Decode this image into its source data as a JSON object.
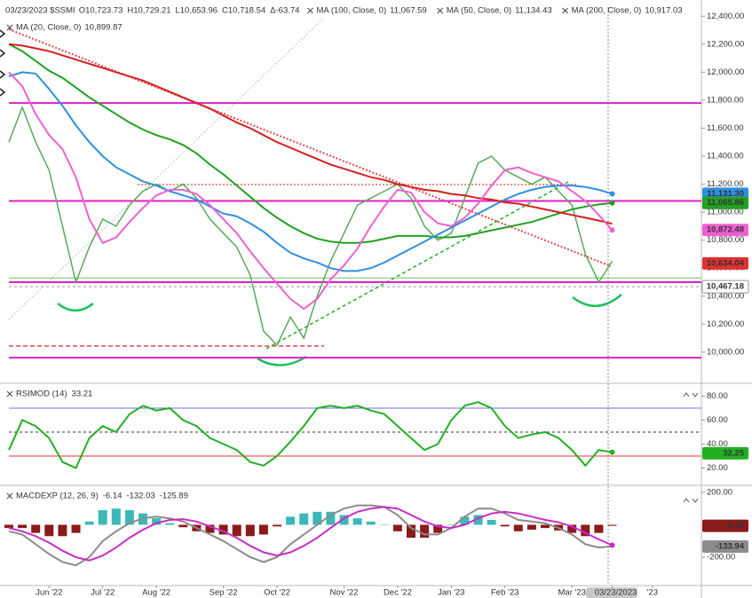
{
  "chart_data": [
    {
      "type": "line",
      "title": "03/23/2023 $SSMI",
      "quote": [
        "O10,723.73",
        "H10,729.21",
        "L10,653.96",
        "C10,718.54",
        "Δ-63.74"
      ],
      "quote_color": "#d42020",
      "ylim": [
        9790,
        12465
      ],
      "yticks": [
        {
          "value": 10000,
          "label": "10,000.00"
        },
        {
          "value": 10200,
          "label": "10,200.00"
        },
        {
          "value": 10400,
          "label": "10,400.00"
        },
        {
          "value": 10600,
          "label": "10,600.00"
        },
        {
          "value": 10800,
          "label": "10,800.00"
        },
        {
          "value": 11000,
          "label": "11,000.00"
        },
        {
          "value": 11200,
          "label": "11,200.00"
        },
        {
          "value": 11400,
          "label": "11,400.00"
        },
        {
          "value": 11600,
          "label": "11,600.00"
        },
        {
          "value": 11800,
          "label": "11,800.00"
        },
        {
          "value": 12000,
          "label": "12,000.00"
        },
        {
          "value": 12200,
          "label": "12,200.00"
        },
        {
          "value": 12400,
          "label": "12,400.00"
        }
      ],
      "grid": false,
      "levels": [
        {
          "value": 11780,
          "color": "#e020c0",
          "width": 2
        },
        {
          "value": 11080,
          "color": "#e020c0",
          "width": 2
        },
        {
          "value": 10500,
          "color": "#e020c0",
          "width": 2
        },
        {
          "value": 9960,
          "color": "#e020c0",
          "width": 2
        },
        {
          "value": 10530,
          "color": "#6cc06c",
          "width": 1
        },
        {
          "value": 10467.18,
          "color": "#999999",
          "width": 1,
          "dash": true
        }
      ],
      "series": [
        {
          "color": "#5aa85a",
          "values": [
            11500,
            11750,
            11500,
            11300,
            10900,
            10500,
            10750,
            10950,
            10900,
            11050,
            11150,
            11200,
            11150,
            11200,
            11100,
            10950,
            10850,
            10750,
            10550,
            10150,
            10050,
            10250,
            10100,
            10400,
            10650,
            10850,
            11050,
            11100,
            11150,
            11200,
            11100,
            10900,
            10800,
            10850,
            11100,
            11350,
            11400,
            11300,
            11250,
            11200,
            11250,
            11150,
            11050,
            10700,
            10500,
            10650,
            null,
            null,
            null,
            null,
            null,
            null
          ]
        },
        {
          "name": "MA (100, Close, 0)",
          "legend_value": "11,067.59",
          "color": "#22a022",
          "marker_last": true,
          "values": [
            12200,
            12150,
            12080,
            12010,
            11960,
            11890,
            11820,
            11760,
            11700,
            11640,
            11590,
            11550,
            11520,
            11480,
            11420,
            11340,
            11270,
            11190,
            11110,
            11030,
            10960,
            10900,
            10850,
            10810,
            10790,
            10780,
            10780,
            10790,
            10810,
            10830,
            10830,
            10830,
            10820,
            10820,
            10830,
            10850,
            10870,
            10890,
            10910,
            10930,
            10960,
            10990,
            11020,
            11040,
            11055,
            11066,
            null,
            null,
            null,
            null,
            null,
            null
          ]
        },
        {
          "name": "MA (50, Close, 0)",
          "legend_value": "11,134.43",
          "color": "#2f8fe0",
          "marker_last": true,
          "values": [
            11970,
            12000,
            11990,
            11880,
            11760,
            11620,
            11500,
            11400,
            11320,
            11270,
            11220,
            11190,
            11150,
            11120,
            11090,
            11040,
            10990,
            10970,
            10920,
            10860,
            10780,
            10710,
            10670,
            10640,
            10600,
            10580,
            10580,
            10600,
            10640,
            10690,
            10740,
            10790,
            10840,
            10890,
            10940,
            10990,
            11040,
            11090,
            11130,
            11160,
            11180,
            11190,
            11190,
            11180,
            11160,
            11131,
            null,
            null,
            null,
            null,
            null,
            null
          ]
        },
        {
          "name": "MA (200, Close, 0)",
          "legend_value": "10,917.03",
          "color": "#d42020",
          "marker_last": false,
          "values": [
            12200,
            12190,
            12170,
            12150,
            12120,
            12090,
            12060,
            12030,
            12000,
            11970,
            11940,
            11900,
            11860,
            11820,
            11780,
            11740,
            11690,
            11640,
            11600,
            11550,
            11500,
            11460,
            11420,
            11380,
            11340,
            11310,
            11280,
            11250,
            11230,
            11200,
            11180,
            11160,
            11150,
            11130,
            11120,
            11100,
            11090,
            11070,
            11060,
            11040,
            11020,
            11000,
            10980,
            10960,
            10940,
            10917,
            null,
            null,
            null,
            null,
            null,
            null
          ]
        },
        {
          "name": "MA (20, Close, 0)",
          "legend_value": "10,899.87",
          "color": "#f060d0",
          "marker_last": true,
          "values": [
            12000,
            11900,
            11700,
            11550,
            11450,
            11250,
            10950,
            10780,
            10820,
            10930,
            11030,
            11120,
            11160,
            11160,
            11130,
            11050,
            10950,
            10850,
            10720,
            10600,
            10490,
            10380,
            10310,
            10380,
            10520,
            10620,
            10740,
            10900,
            11040,
            11160,
            11140,
            11000,
            10920,
            10900,
            10960,
            11060,
            11190,
            11300,
            11320,
            11280,
            11250,
            11220,
            11150,
            11080,
            10980,
            10872,
            null,
            null,
            null,
            null,
            null,
            null
          ]
        }
      ],
      "price_labels": [
        {
          "value": 11131.3,
          "label": "11,131.30",
          "color": "#2f8fe0"
        },
        {
          "value": 11065.86,
          "label": "11,065.86",
          "color": "#22a022"
        },
        {
          "value": 10872.48,
          "label": "10,872.48",
          "color": "#f060d0"
        },
        {
          "value": 10634.04,
          "label": "10,634.04",
          "color": "#e03030"
        },
        {
          "value": 10467.18,
          "label": "10,467.18",
          "color": "#ffffff"
        }
      ]
    },
    {
      "type": "line",
      "title": "RSIMOD (14)",
      "ylim": [
        7,
        90
      ],
      "yticks": [
        {
          "value": 20,
          "label": "20.00"
        },
        {
          "value": 40,
          "label": "40.00"
        },
        {
          "value": 60,
          "label": "60.00"
        },
        {
          "value": 80,
          "label": "80.00"
        }
      ],
      "grid": false,
      "levels": [
        {
          "value": 70,
          "color": "#6b6bf0",
          "width": 1
        },
        {
          "value": 30,
          "color": "#f03030",
          "width": 1
        },
        {
          "value": 50,
          "color": "#333333",
          "width": 1,
          "dash": true
        }
      ],
      "series": [
        {
          "legend_value": "33.21",
          "color": "#22b022",
          "marker_last": true,
          "values": [
            35,
            60,
            55,
            45,
            25,
            20,
            45,
            55,
            50,
            65,
            72,
            68,
            70,
            60,
            55,
            45,
            40,
            35,
            25,
            22,
            30,
            42,
            55,
            70,
            72,
            70,
            72,
            68,
            65,
            55,
            45,
            35,
            40,
            60,
            72,
            75,
            70,
            55,
            45,
            48,
            50,
            45,
            35,
            22,
            35,
            33.21,
            null,
            null,
            null,
            null,
            null,
            null
          ]
        }
      ],
      "price_labels": [
        {
          "value": 32.25,
          "label": "32.25",
          "color": "#22b022"
        }
      ]
    },
    {
      "type": "line",
      "title": "MACDEXP (12, 26, 9)",
      "categories": [
        null,
        null,
        null,
        "Jun '22",
        null,
        null,
        null,
        "Jul '22",
        null,
        null,
        null,
        "Aug '22",
        null,
        null,
        null,
        null,
        "Sep '22",
        null,
        null,
        null,
        "Oct '22",
        null,
        null,
        null,
        null,
        "Nov '22",
        null,
        null,
        null,
        "Dec '22",
        null,
        null,
        null,
        "Jan '23",
        null,
        null,
        null,
        "Feb '23",
        null,
        null,
        null,
        null,
        "Mar '23",
        null,
        null,
        "03/23/2023",
        null,
        null,
        "'23",
        null,
        null,
        null
      ],
      "ylim": [
        -375,
        238
      ],
      "yticks": [
        {
          "value": -200,
          "label": "-200.00"
        },
        {
          "value": 200,
          "label": "200.00"
        }
      ],
      "grid": false,
      "levels": [],
      "series": [
        {
          "type": "bar",
          "legend_value": "-6.14",
          "color": "#8b1a1a",
          "positive_color": "#3cb8b8",
          "values": [
            -20,
            -20,
            -50,
            -70,
            -70,
            -50,
            20,
            90,
            100,
            90,
            70,
            40,
            10,
            -15,
            -40,
            -50,
            -60,
            -70,
            -70,
            -60,
            -10,
            50,
            70,
            80,
            80,
            60,
            40,
            20,
            0,
            -40,
            -80,
            -80,
            -50,
            0,
            50,
            60,
            30,
            -10,
            -40,
            -30,
            -20,
            -35,
            -50,
            -70,
            -50,
            -6.14,
            null,
            null,
            null,
            null,
            null,
            null
          ]
        },
        {
          "legend_value": "-132.03",
          "color": "#8c8c8c",
          "marker_last": false,
          "values": [
            -40,
            -60,
            -120,
            -180,
            -230,
            -250,
            -200,
            -100,
            -40,
            10,
            40,
            50,
            40,
            20,
            -20,
            -60,
            -100,
            -150,
            -200,
            -230,
            -200,
            -120,
            -60,
            0,
            60,
            100,
            120,
            120,
            110,
            60,
            -20,
            -60,
            -60,
            -20,
            50,
            100,
            100,
            70,
            30,
            20,
            10,
            -20,
            -60,
            -120,
            -140,
            -132.03,
            null,
            null,
            null,
            null,
            null,
            null
          ]
        },
        {
          "legend_value": "-125.89",
          "color": "#c82cc8",
          "marker_last": true,
          "values": [
            -20,
            -40,
            -70,
            -110,
            -160,
            -200,
            -220,
            -190,
            -140,
            -80,
            -30,
            10,
            30,
            35,
            20,
            -10,
            -40,
            -80,
            -130,
            -170,
            -190,
            -170,
            -130,
            -80,
            -20,
            40,
            80,
            100,
            110,
            100,
            60,
            20,
            -10,
            -20,
            0,
            40,
            70,
            80,
            70,
            50,
            30,
            15,
            -10,
            -50,
            -90,
            -125.89,
            null,
            null,
            null,
            null,
            null,
            null
          ]
        }
      ],
      "price_labels": [
        {
          "value": -6.45,
          "label": "-6.45",
          "color": "#8b1a1a"
        },
        {
          "value": -133.94,
          "label": "-133.94",
          "color": "#8c8c8c"
        }
      ]
    }
  ]
}
